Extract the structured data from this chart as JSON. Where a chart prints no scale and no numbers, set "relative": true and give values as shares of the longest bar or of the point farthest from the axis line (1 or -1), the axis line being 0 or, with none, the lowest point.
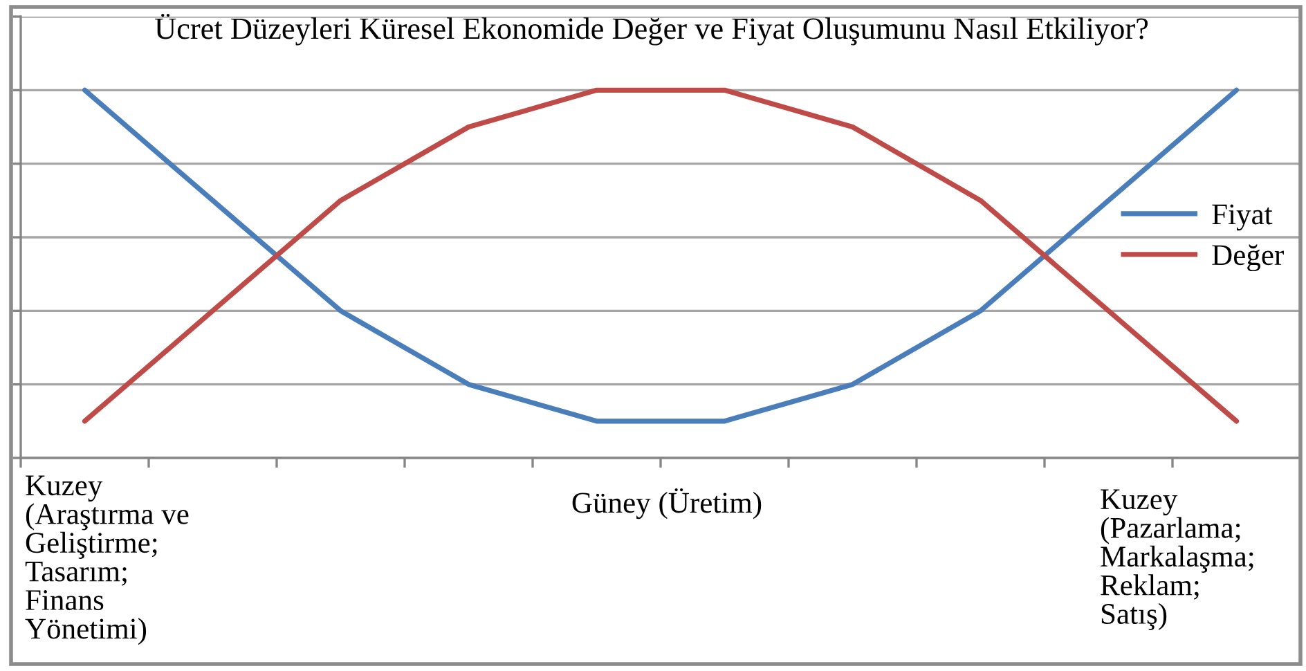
{
  "chart_data": {
    "type": "line",
    "title": "Ücret Düzeyleri Küresel Ekonomide Değer ve Fiyat Oluşumunu Nasıl Etkiliyor?",
    "categories": [
      null,
      null,
      null,
      null,
      null,
      null,
      null,
      null,
      null,
      null
    ],
    "relative": true,
    "series": [
      {
        "name": "Fiyat",
        "color": "#4a7ebb",
        "values": [
          1,
          0.7,
          0.4,
          0.2,
          0.1,
          0.1,
          0.2,
          0.4,
          0.7,
          1
        ]
      },
      {
        "name": "Değer",
        "color": "#be4b48",
        "values": [
          0.1,
          0.4,
          0.7,
          0.9,
          1,
          1,
          0.9,
          0.7,
          0.4,
          0.1
        ]
      }
    ],
    "annotations": [
      "Kuzey\n(Araştırma ve\nGeliştirme;\nTasarım;\nFinans\nYönetimi)",
      "Güney (Üretim)",
      "Kuzey\n(Pazarlama;\nMarkalaşma;\nReklam;\nSatış)"
    ],
    "grid": "y",
    "legend": "right"
  }
}
